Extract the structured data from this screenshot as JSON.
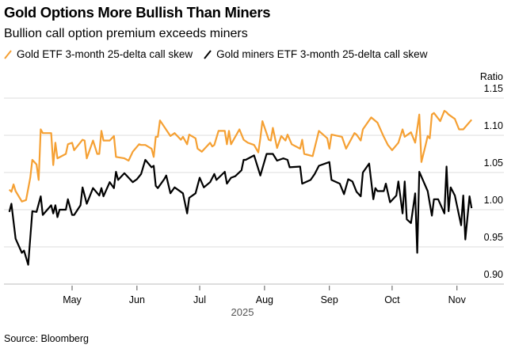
{
  "chart_data": {
    "type": "line",
    "title": "Gold Options More Bullish Than Miners",
    "subtitle": "Bullion call option premium exceeds miners",
    "ylabel": "Ratio",
    "xlabel": "2025",
    "source": "Source: Bloomberg",
    "ylim": [
      0.9,
      1.15
    ],
    "yticks": [
      "1.15",
      "1.10",
      "1.05",
      "1.00",
      "0.95",
      "0.90"
    ],
    "xticks": [
      {
        "label": "May",
        "date": "2025-05-01"
      },
      {
        "label": "Jun",
        "date": "2025-06-01"
      },
      {
        "label": "Jul",
        "date": "2025-07-01"
      },
      {
        "label": "Aug",
        "date": "2025-08-01"
      },
      {
        "label": "Sep",
        "date": "2025-09-01"
      },
      {
        "label": "Oct",
        "date": "2025-10-01"
      },
      {
        "label": "Nov",
        "date": "2025-11-01"
      }
    ],
    "grid": true,
    "legend_placement": "top",
    "series": [
      {
        "name": "Gold ETF 3-month 25-delta call skew",
        "color": "#F5A033",
        "points": [
          [
            "2025-04-01",
            1.027
          ],
          [
            "2025-04-02",
            1.024
          ],
          [
            "2025-04-03",
            1.034
          ],
          [
            "2025-04-04",
            1.025
          ],
          [
            "2025-04-07",
            1.011
          ],
          [
            "2025-04-09",
            1.013
          ],
          [
            "2025-04-11",
            1.043
          ],
          [
            "2025-04-12",
            1.067
          ],
          [
            "2025-04-14",
            1.061
          ],
          [
            "2025-04-15",
            1.04
          ],
          [
            "2025-04-16",
            1.108
          ],
          [
            "2025-04-17",
            1.103
          ],
          [
            "2025-04-21",
            1.103
          ],
          [
            "2025-04-22",
            1.06
          ],
          [
            "2025-04-23",
            1.09
          ],
          [
            "2025-04-24",
            1.069
          ],
          [
            "2025-04-28",
            1.075
          ],
          [
            "2025-04-29",
            1.088
          ],
          [
            "2025-05-01",
            1.09
          ],
          [
            "2025-05-02",
            1.08
          ],
          [
            "2025-05-04",
            1.087
          ],
          [
            "2025-05-06",
            1.094
          ],
          [
            "2025-05-07",
            1.093
          ],
          [
            "2025-05-08",
            1.069
          ],
          [
            "2025-05-11",
            1.093
          ],
          [
            "2025-05-13",
            1.075
          ],
          [
            "2025-05-14",
            1.075
          ],
          [
            "2025-05-15",
            1.106
          ],
          [
            "2025-05-16",
            1.093
          ],
          [
            "2025-05-19",
            1.093
          ],
          [
            "2025-05-21",
            1.099
          ],
          [
            "2025-05-22",
            1.071
          ],
          [
            "2025-05-26",
            1.069
          ],
          [
            "2025-05-28",
            1.066
          ],
          [
            "2025-05-30",
            1.078
          ],
          [
            "2025-06-02",
            1.088
          ],
          [
            "2025-06-03",
            1.087
          ],
          [
            "2025-06-05",
            1.087
          ],
          [
            "2025-06-08",
            1.082
          ],
          [
            "2025-06-09",
            1.071
          ],
          [
            "2025-06-10",
            1.098
          ],
          [
            "2025-06-11",
            1.098
          ],
          [
            "2025-06-12",
            1.12
          ],
          [
            "2025-06-17",
            1.099
          ],
          [
            "2025-06-19",
            1.103
          ],
          [
            "2025-06-22",
            1.094
          ],
          [
            "2025-06-23",
            1.098
          ],
          [
            "2025-06-25",
            1.088
          ],
          [
            "2025-06-26",
            1.101
          ],
          [
            "2025-06-29",
            1.096
          ],
          [
            "2025-06-30",
            1.082
          ],
          [
            "2025-07-02",
            1.078
          ],
          [
            "2025-07-06",
            1.09
          ],
          [
            "2025-07-07",
            1.085
          ],
          [
            "2025-07-08",
            1.087
          ],
          [
            "2025-07-10",
            1.106
          ],
          [
            "2025-07-13",
            1.106
          ],
          [
            "2025-07-14",
            1.088
          ],
          [
            "2025-07-15",
            1.106
          ],
          [
            "2025-07-16",
            1.088
          ],
          [
            "2025-07-20",
            1.108
          ],
          [
            "2025-07-22",
            1.094
          ],
          [
            "2025-07-24",
            1.09
          ],
          [
            "2025-07-27",
            1.087
          ],
          [
            "2025-07-29",
            1.077
          ],
          [
            "2025-07-30",
            1.096
          ],
          [
            "2025-07-31",
            1.119
          ],
          [
            "2025-08-03",
            1.094
          ],
          [
            "2025-08-04",
            1.093
          ],
          [
            "2025-08-05",
            1.11
          ],
          [
            "2025-08-07",
            1.083
          ],
          [
            "2025-08-09",
            1.099
          ],
          [
            "2025-08-11",
            1.093
          ],
          [
            "2025-08-12",
            1.101
          ],
          [
            "2025-08-14",
            1.088
          ],
          [
            "2025-08-18",
            1.082
          ],
          [
            "2025-08-19",
            1.094
          ],
          [
            "2025-08-20",
            1.075
          ],
          [
            "2025-08-24",
            1.072
          ],
          [
            "2025-08-27",
            1.106
          ],
          [
            "2025-08-31",
            1.096
          ],
          [
            "2025-09-01",
            1.082
          ],
          [
            "2025-09-02",
            1.101
          ],
          [
            "2025-09-07",
            1.098
          ],
          [
            "2025-09-09",
            1.082
          ],
          [
            "2025-09-13",
            1.103
          ],
          [
            "2025-09-14",
            1.101
          ],
          [
            "2025-09-16",
            1.093
          ],
          [
            "2025-09-17",
            1.108
          ],
          [
            "2025-09-21",
            1.124
          ],
          [
            "2025-09-24",
            1.117
          ],
          [
            "2025-09-27",
            1.098
          ],
          [
            "2025-09-29",
            1.087
          ],
          [
            "2025-10-01",
            1.08
          ],
          [
            "2025-10-04",
            1.09
          ],
          [
            "2025-10-06",
            1.108
          ],
          [
            "2025-10-07",
            1.098
          ],
          [
            "2025-10-10",
            1.104
          ],
          [
            "2025-10-12",
            1.09
          ],
          [
            "2025-10-14",
            1.128
          ],
          [
            "2025-10-15",
            1.064
          ],
          [
            "2025-10-17",
            1.087
          ],
          [
            "2025-10-18",
            1.099
          ],
          [
            "2025-10-19",
            1.096
          ],
          [
            "2025-10-20",
            1.128
          ],
          [
            "2025-10-21",
            1.13
          ],
          [
            "2025-10-24",
            1.119
          ],
          [
            "2025-10-26",
            1.133
          ],
          [
            "2025-10-27",
            1.131
          ],
          [
            "2025-10-28",
            1.128
          ],
          [
            "2025-10-31",
            1.122
          ],
          [
            "2025-11-02",
            1.108
          ],
          [
            "2025-11-04",
            1.108
          ],
          [
            "2025-11-08",
            1.121
          ]
        ]
      },
      {
        "name": "Gold miners ETF 3-month 25-delta call skew",
        "color": "#000000",
        "points": [
          [
            "2025-04-01",
            0.997
          ],
          [
            "2025-04-02",
            1.008
          ],
          [
            "2025-04-04",
            0.961
          ],
          [
            "2025-04-07",
            0.942
          ],
          [
            "2025-04-08",
            0.945
          ],
          [
            "2025-04-10",
            0.926
          ],
          [
            "2025-04-12",
            0.998
          ],
          [
            "2025-04-14",
            0.997
          ],
          [
            "2025-04-16",
            1.018
          ],
          [
            "2025-04-17",
            0.993
          ],
          [
            "2025-04-21",
            1.006
          ],
          [
            "2025-04-22",
            0.995
          ],
          [
            "2025-04-23",
            1.006
          ],
          [
            "2025-04-24",
            0.99
          ],
          [
            "2025-04-25",
            1.0
          ],
          [
            "2025-04-28",
            1.0
          ],
          [
            "2025-04-29",
            1.014
          ],
          [
            "2025-05-01",
            0.993
          ],
          [
            "2025-05-02",
            0.993
          ],
          [
            "2025-05-05",
            1.006
          ],
          [
            "2025-05-06",
            1.03
          ],
          [
            "2025-05-08",
            1.008
          ],
          [
            "2025-05-11",
            1.029
          ],
          [
            "2025-05-14",
            1.019
          ],
          [
            "2025-05-15",
            1.029
          ],
          [
            "2025-05-16",
            1.018
          ],
          [
            "2025-05-19",
            1.037
          ],
          [
            "2025-05-21",
            1.029
          ],
          [
            "2025-05-22",
            1.051
          ],
          [
            "2025-05-23",
            1.04
          ],
          [
            "2025-05-26",
            1.049
          ],
          [
            "2025-05-30",
            1.037
          ],
          [
            "2025-06-01",
            1.041
          ],
          [
            "2025-06-03",
            1.048
          ],
          [
            "2025-06-05",
            1.067
          ],
          [
            "2025-06-08",
            1.057
          ],
          [
            "2025-06-09",
            1.059
          ],
          [
            "2025-06-10",
            1.032
          ],
          [
            "2025-06-11",
            1.029
          ],
          [
            "2025-06-14",
            1.041
          ],
          [
            "2025-06-15",
            1.046
          ],
          [
            "2025-06-17",
            1.022
          ],
          [
            "2025-06-19",
            1.03
          ],
          [
            "2025-06-23",
            1.022
          ],
          [
            "2025-06-25",
            0.995
          ],
          [
            "2025-06-26",
            1.016
          ],
          [
            "2025-06-29",
            1.022
          ],
          [
            "2025-07-01",
            1.043
          ],
          [
            "2025-07-03",
            1.03
          ],
          [
            "2025-07-06",
            1.037
          ],
          [
            "2025-07-08",
            1.048
          ],
          [
            "2025-07-09",
            1.04
          ],
          [
            "2025-07-13",
            1.051
          ],
          [
            "2025-07-14",
            1.035
          ],
          [
            "2025-07-16",
            1.043
          ],
          [
            "2025-07-18",
            1.045
          ],
          [
            "2025-07-21",
            1.053
          ],
          [
            "2025-07-22",
            1.067
          ],
          [
            "2025-07-23",
            1.067
          ],
          [
            "2025-07-27",
            1.073
          ],
          [
            "2025-07-30",
            1.046
          ],
          [
            "2025-08-02",
            1.075
          ],
          [
            "2025-08-05",
            1.075
          ],
          [
            "2025-08-07",
            1.066
          ],
          [
            "2025-08-10",
            1.069
          ],
          [
            "2025-08-12",
            1.067
          ],
          [
            "2025-08-13",
            1.057
          ],
          [
            "2025-08-18",
            1.058
          ],
          [
            "2025-08-19",
            1.035
          ],
          [
            "2025-08-23",
            1.04
          ],
          [
            "2025-08-25",
            1.048
          ],
          [
            "2025-08-27",
            1.059
          ],
          [
            "2025-09-01",
            1.064
          ],
          [
            "2025-09-02",
            1.04
          ],
          [
            "2025-09-06",
            1.035
          ],
          [
            "2025-09-08",
            1.021
          ],
          [
            "2025-09-10",
            1.041
          ],
          [
            "2025-09-12",
            1.038
          ],
          [
            "2025-09-14",
            1.024
          ],
          [
            "2025-09-16",
            1.018
          ],
          [
            "2025-09-17",
            1.05
          ],
          [
            "2025-09-20",
            1.062
          ],
          [
            "2025-09-22",
            1.014
          ],
          [
            "2025-09-23",
            1.029
          ],
          [
            "2025-09-24",
            1.025
          ],
          [
            "2025-09-27",
            1.025
          ],
          [
            "2025-09-28",
            1.035
          ],
          [
            "2025-09-30",
            1.01
          ],
          [
            "2025-10-03",
            1.019
          ],
          [
            "2025-10-04",
            1.038
          ],
          [
            "2025-10-06",
            0.995
          ],
          [
            "2025-10-07",
            1.038
          ],
          [
            "2025-10-08",
            0.987
          ],
          [
            "2025-10-10",
            0.982
          ],
          [
            "2025-10-12",
            1.022
          ],
          [
            "2025-10-13",
            0.942
          ],
          [
            "2025-10-14",
            1.051
          ],
          [
            "2025-10-18",
            1.025
          ],
          [
            "2025-10-20",
            0.992
          ],
          [
            "2025-10-21",
            1.014
          ],
          [
            "2025-10-23",
            1.014
          ],
          [
            "2025-10-26",
            0.995
          ],
          [
            "2025-10-27",
            1.058
          ],
          [
            "2025-10-28",
            0.998
          ],
          [
            "2025-10-29",
            1.03
          ],
          [
            "2025-10-31",
            1.019
          ],
          [
            "2025-11-03",
            0.979
          ],
          [
            "2025-11-04",
            1.019
          ],
          [
            "2025-11-05",
            0.96
          ],
          [
            "2025-11-07",
            1.018
          ],
          [
            "2025-11-08",
            1.002
          ]
        ]
      }
    ]
  }
}
